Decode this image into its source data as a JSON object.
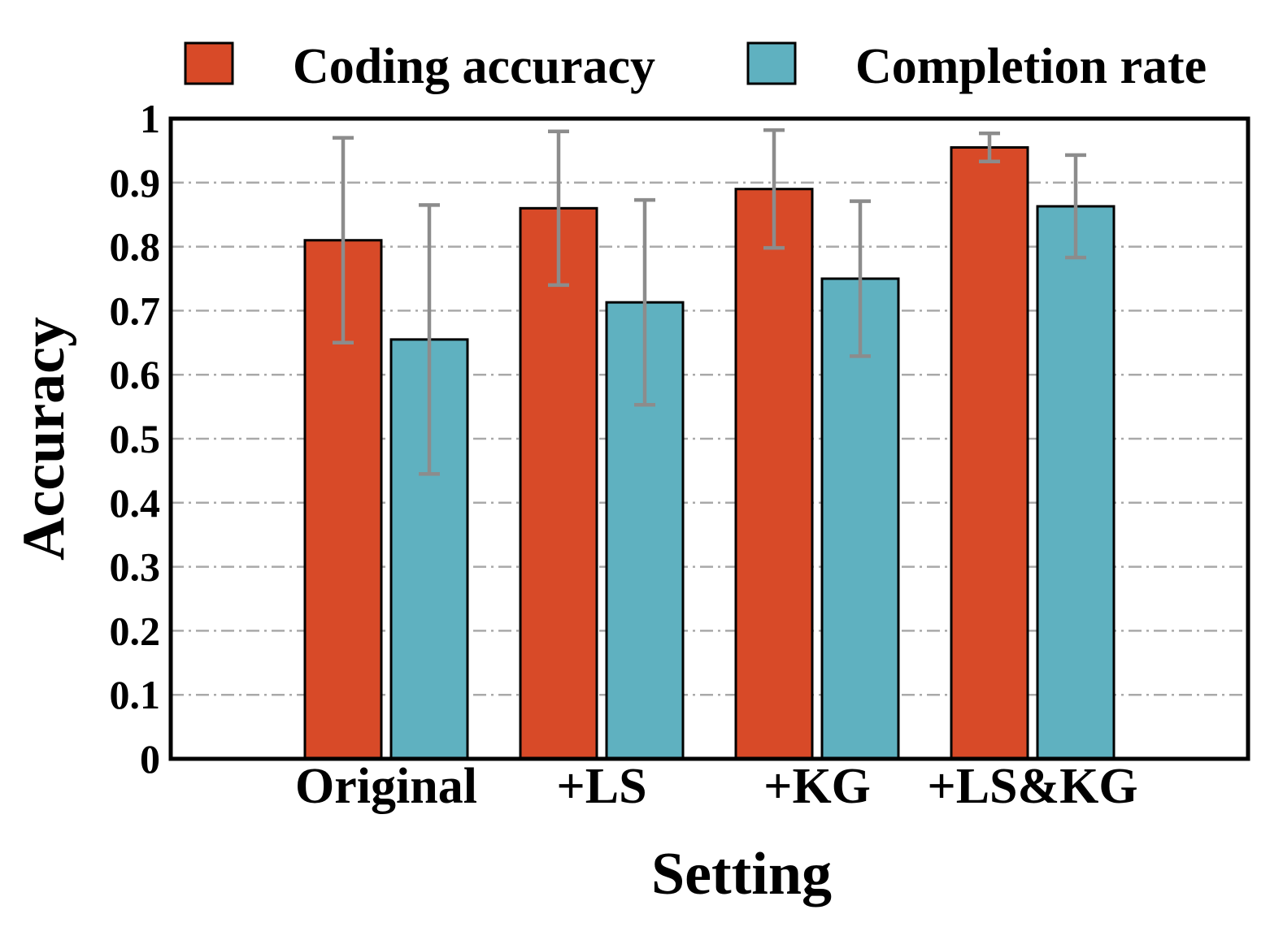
{
  "chart_data": {
    "type": "bar",
    "categories": [
      "Original",
      "+LS",
      "+KG",
      "+LS&KG"
    ],
    "series": [
      {
        "name": "Coding accuracy",
        "color": "#d84a28",
        "values": [
          0.81,
          0.86,
          0.89,
          0.955
        ],
        "error": [
          0.16,
          0.12,
          0.092,
          0.022
        ]
      },
      {
        "name": "Completion rate",
        "color": "#5fb1c0",
        "values": [
          0.655,
          0.713,
          0.75,
          0.863
        ],
        "error": [
          0.21,
          0.16,
          0.121,
          0.08
        ]
      }
    ],
    "xlabel": "Setting",
    "ylabel": "Accuracy",
    "ylim": [
      0,
      1
    ],
    "yticks": [
      "0",
      "0.1",
      "0.2",
      "0.3",
      "0.4",
      "0.5",
      "0.6",
      "0.7",
      "0.8",
      "0.9",
      "1"
    ],
    "grid": true,
    "legend": "top"
  }
}
